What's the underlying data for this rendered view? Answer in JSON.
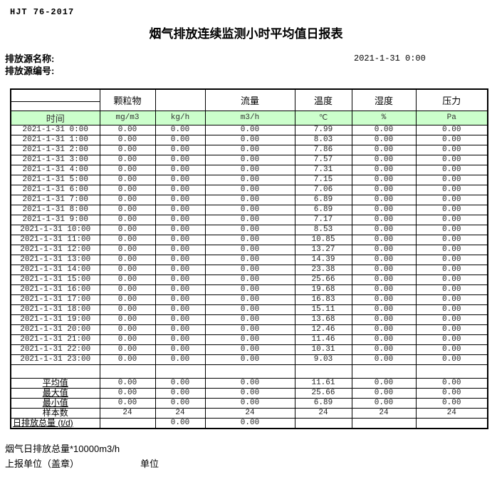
{
  "header": {
    "standard_code": "HJT  76-2017",
    "title": "烟气排放连续监测小时平均值日报表",
    "source_name_label": "排放源名称:",
    "source_id_label": "排放源编号:",
    "datetime": "2021-1-31  0:00"
  },
  "table": {
    "group_headers": {
      "particulate": "颗粒物",
      "flow": "流量",
      "temperature": "温度",
      "humidity": "湿度",
      "pressure": "压力"
    },
    "time_label": "时间",
    "units": [
      "mg/m3",
      "kg/h",
      "m3/h",
      "℃",
      "%",
      "Pa"
    ],
    "rows": [
      {
        "time": "2021-1-31 0:00",
        "values": [
          "0.00",
          "0.00",
          "0.00",
          "7.99",
          "0.00",
          "0.00"
        ]
      },
      {
        "time": "2021-1-31 1:00",
        "values": [
          "0.00",
          "0.00",
          "0.00",
          "8.03",
          "0.00",
          "0.00"
        ]
      },
      {
        "time": "2021-1-31 2:00",
        "values": [
          "0.00",
          "0.00",
          "0.00",
          "7.86",
          "0.00",
          "0.00"
        ]
      },
      {
        "time": "2021-1-31 3:00",
        "values": [
          "0.00",
          "0.00",
          "0.00",
          "7.57",
          "0.00",
          "0.00"
        ]
      },
      {
        "time": "2021-1-31 4:00",
        "values": [
          "0.00",
          "0.00",
          "0.00",
          "7.31",
          "0.00",
          "0.00"
        ]
      },
      {
        "time": "2021-1-31 5:00",
        "values": [
          "0.00",
          "0.00",
          "0.00",
          "7.15",
          "0.00",
          "0.00"
        ]
      },
      {
        "time": "2021-1-31 6:00",
        "values": [
          "0.00",
          "0.00",
          "0.00",
          "7.06",
          "0.00",
          "0.00"
        ]
      },
      {
        "time": "2021-1-31 7:00",
        "values": [
          "0.00",
          "0.00",
          "0.00",
          "6.89",
          "0.00",
          "0.00"
        ]
      },
      {
        "time": "2021-1-31 8:00",
        "values": [
          "0.00",
          "0.00",
          "0.00",
          "6.89",
          "0.00",
          "0.00"
        ]
      },
      {
        "time": "2021-1-31 9:00",
        "values": [
          "0.00",
          "0.00",
          "0.00",
          "7.17",
          "0.00",
          "0.00"
        ]
      },
      {
        "time": "2021-1-31 10:00",
        "values": [
          "0.00",
          "0.00",
          "0.00",
          "8.53",
          "0.00",
          "0.00"
        ]
      },
      {
        "time": "2021-1-31 11:00",
        "values": [
          "0.00",
          "0.00",
          "0.00",
          "10.85",
          "0.00",
          "0.00"
        ]
      },
      {
        "time": "2021-1-31 12:00",
        "values": [
          "0.00",
          "0.00",
          "0.00",
          "13.27",
          "0.00",
          "0.00"
        ]
      },
      {
        "time": "2021-1-31 13:00",
        "values": [
          "0.00",
          "0.00",
          "0.00",
          "14.39",
          "0.00",
          "0.00"
        ]
      },
      {
        "time": "2021-1-31 14:00",
        "values": [
          "0.00",
          "0.00",
          "0.00",
          "23.38",
          "0.00",
          "0.00"
        ]
      },
      {
        "time": "2021-1-31 15:00",
        "values": [
          "0.00",
          "0.00",
          "0.00",
          "25.66",
          "0.00",
          "0.00"
        ]
      },
      {
        "time": "2021-1-31 16:00",
        "values": [
          "0.00",
          "0.00",
          "0.00",
          "19.68",
          "0.00",
          "0.00"
        ]
      },
      {
        "time": "2021-1-31 17:00",
        "values": [
          "0.00",
          "0.00",
          "0.00",
          "16.83",
          "0.00",
          "0.00"
        ]
      },
      {
        "time": "2021-1-31 18:00",
        "values": [
          "0.00",
          "0.00",
          "0.00",
          "15.11",
          "0.00",
          "0.00"
        ]
      },
      {
        "time": "2021-1-31 19:00",
        "values": [
          "0.00",
          "0.00",
          "0.00",
          "13.68",
          "0.00",
          "0.00"
        ]
      },
      {
        "time": "2021-1-31 20:00",
        "values": [
          "0.00",
          "0.00",
          "0.00",
          "12.46",
          "0.00",
          "0.00"
        ]
      },
      {
        "time": "2021-1-31 21:00",
        "values": [
          "0.00",
          "0.00",
          "0.00",
          "11.46",
          "0.00",
          "0.00"
        ]
      },
      {
        "time": "2021-1-31 22:00",
        "values": [
          "0.00",
          "0.00",
          "0.00",
          "10.31",
          "0.00",
          "0.00"
        ]
      },
      {
        "time": "2021-1-31 23:00",
        "values": [
          "0.00",
          "0.00",
          "0.00",
          "9.03",
          "0.00",
          "0.00"
        ]
      }
    ],
    "summary": [
      {
        "label": "平均值",
        "underline": true,
        "left_align": false,
        "values": [
          "0.00",
          "0.00",
          "0.00",
          "11.61",
          "0.00",
          "0.00"
        ]
      },
      {
        "label": "最大值",
        "underline": true,
        "left_align": false,
        "values": [
          "0.00",
          "0.00",
          "0.00",
          "25.66",
          "0.00",
          "0.00"
        ]
      },
      {
        "label": "最小值",
        "underline": true,
        "left_align": false,
        "values": [
          "0.00",
          "0.00",
          "0.00",
          "6.89",
          "0.00",
          "0.00"
        ]
      },
      {
        "label": "样本数",
        "underline": false,
        "left_align": false,
        "values": [
          "24",
          "24",
          "24",
          "24",
          "24",
          "24"
        ]
      },
      {
        "label": "日排放总量 (t/d)",
        "underline": true,
        "left_align": true,
        "values": [
          "",
          "0.00",
          "0.00",
          "",
          "",
          ""
        ]
      }
    ]
  },
  "footer": {
    "total_note": "烟气日排放总量*10000m3/h",
    "report_unit_label": "上报单位（盖章）",
    "unit_label": "单位"
  },
  "colors": {
    "unit_row_bg": "#ccffcc",
    "border": "#000000"
  }
}
